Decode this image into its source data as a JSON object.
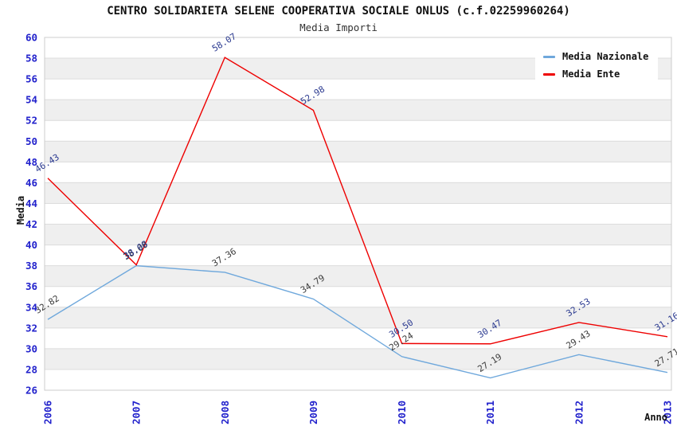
{
  "chart_data": {
    "type": "line",
    "title": "CENTRO SOLIDARIETA SELENE COOPERATIVA SOCIALE ONLUS (c.f.02259960264)",
    "subtitle": "Media Importi",
    "xlabel": "Anno",
    "ylabel": "Media",
    "categories": [
      "2006",
      "2007",
      "2008",
      "2009",
      "2010",
      "2011",
      "2012",
      "2013"
    ],
    "series": [
      {
        "name": "Media Nazionale",
        "color": "#6FA8DC",
        "label_color": "#3A3A3A",
        "values": [
          32.82,
          38.0,
          37.36,
          34.79,
          29.24,
          27.19,
          29.43,
          27.71
        ],
        "value_labels": [
          "32.82",
          "38.00",
          "37.36",
          "34.79",
          "29.24",
          "27.19",
          "29.43",
          "27.71"
        ]
      },
      {
        "name": "Media Ente",
        "color": "#EE0000",
        "label_color": "#2B3A90",
        "values": [
          46.43,
          38.08,
          58.07,
          52.98,
          30.5,
          30.47,
          32.53,
          31.16
        ],
        "value_labels": [
          "46.43",
          "38.08",
          "58.07",
          "52.98",
          "30.50",
          "30.47",
          "32.53",
          "31.16"
        ]
      }
    ],
    "ylim": [
      26,
      60
    ],
    "y_tick_step": 2,
    "y_tick_labels": [
      "26",
      "28",
      "30",
      "32",
      "34",
      "36",
      "38",
      "40",
      "42",
      "44",
      "46",
      "48",
      "50",
      "52",
      "54",
      "56",
      "58",
      "60"
    ],
    "grid": true,
    "legend_position": "top-right",
    "tick_color": "#2222CC",
    "gridline_color": "#DCDCDC",
    "frame_color": "#CCCCCC",
    "band_colors": [
      "#FFFFFF",
      "#EFEFEF"
    ]
  }
}
